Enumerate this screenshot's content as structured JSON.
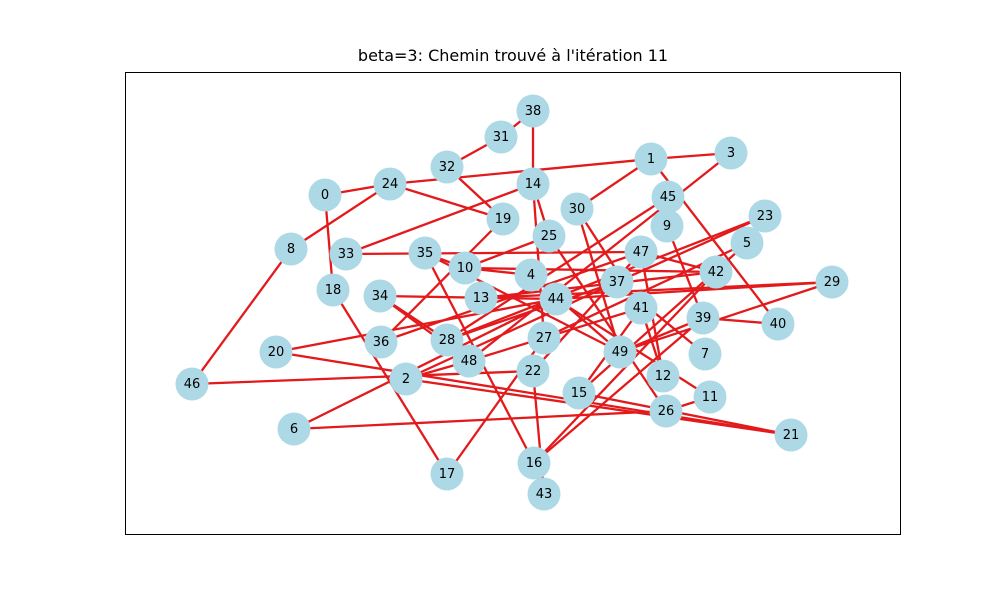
{
  "title": "beta=3: Chemin trouvé à l'itération 11",
  "colors": {
    "edge": "#e31a1c",
    "node": "#add8e6"
  },
  "nodes": [
    "0",
    "1",
    "2",
    "3",
    "4",
    "5",
    "6",
    "7",
    "8",
    "9",
    "10",
    "11",
    "12",
    "13",
    "14",
    "15",
    "16",
    "17",
    "18",
    "19",
    "20",
    "21",
    "22",
    "23",
    "24",
    "25",
    "26",
    "27",
    "28",
    "29",
    "30",
    "31",
    "32",
    "33",
    "34",
    "35",
    "36",
    "37",
    "38",
    "39",
    "40",
    "41",
    "42",
    "43",
    "44",
    "45",
    "46",
    "47",
    "48",
    "49"
  ],
  "edges": [
    [
      "0",
      "18"
    ],
    [
      "0",
      "24"
    ],
    [
      "8",
      "24"
    ],
    [
      "24",
      "1"
    ],
    [
      "24",
      "19"
    ],
    [
      "1",
      "3"
    ],
    [
      "1",
      "30"
    ],
    [
      "1",
      "40"
    ],
    [
      "32",
      "31"
    ],
    [
      "31",
      "38"
    ],
    [
      "32",
      "19"
    ],
    [
      "38",
      "14"
    ],
    [
      "14",
      "33"
    ],
    [
      "14",
      "27"
    ],
    [
      "14",
      "25"
    ],
    [
      "19",
      "36"
    ],
    [
      "30",
      "41"
    ],
    [
      "30",
      "49"
    ],
    [
      "3",
      "48"
    ],
    [
      "45",
      "9"
    ],
    [
      "45",
      "28"
    ],
    [
      "9",
      "39"
    ],
    [
      "23",
      "37"
    ],
    [
      "5",
      "15"
    ],
    [
      "5",
      "27"
    ],
    [
      "47",
      "33"
    ],
    [
      "47",
      "42"
    ],
    [
      "47",
      "36"
    ],
    [
      "47",
      "12"
    ],
    [
      "47",
      "22"
    ],
    [
      "35",
      "10"
    ],
    [
      "35",
      "49"
    ],
    [
      "35",
      "16"
    ],
    [
      "10",
      "4"
    ],
    [
      "10",
      "42"
    ],
    [
      "10",
      "25"
    ],
    [
      "13",
      "42"
    ],
    [
      "13",
      "29"
    ],
    [
      "4",
      "49"
    ],
    [
      "44",
      "11"
    ],
    [
      "44",
      "6"
    ],
    [
      "44",
      "29"
    ],
    [
      "44",
      "34"
    ],
    [
      "34",
      "28"
    ],
    [
      "34",
      "48"
    ],
    [
      "37",
      "2"
    ],
    [
      "37",
      "7"
    ],
    [
      "41",
      "12"
    ],
    [
      "41",
      "15"
    ],
    [
      "42",
      "16"
    ],
    [
      "39",
      "40"
    ],
    [
      "39",
      "16"
    ],
    [
      "39",
      "49"
    ],
    [
      "49",
      "29"
    ],
    [
      "28",
      "37"
    ],
    [
      "28",
      "23"
    ],
    [
      "48",
      "41"
    ],
    [
      "27",
      "17"
    ],
    [
      "22",
      "43"
    ],
    [
      "22",
      "46"
    ],
    [
      "2",
      "21"
    ],
    [
      "2",
      "48"
    ],
    [
      "18",
      "17"
    ],
    [
      "46",
      "8"
    ],
    [
      "20",
      "21"
    ],
    [
      "20",
      "44"
    ],
    [
      "26",
      "6"
    ],
    [
      "26",
      "25"
    ],
    [
      "26",
      "11"
    ],
    [
      "15",
      "21"
    ],
    [
      "16",
      "43"
    ]
  ]
}
